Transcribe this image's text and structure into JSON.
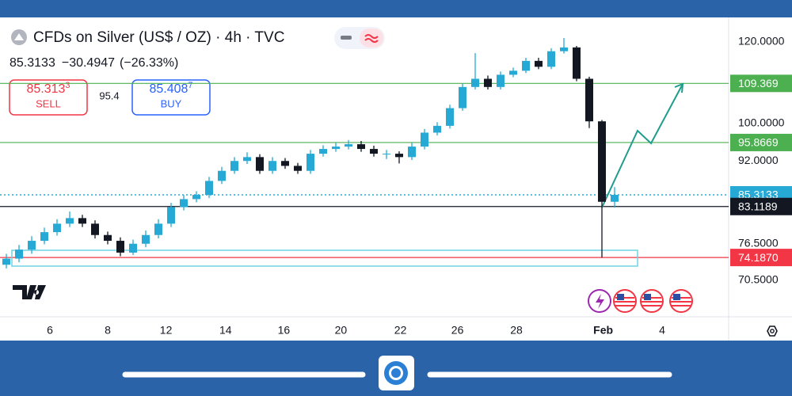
{
  "header": {
    "title": "CFDs on Silver (US$ / OZ) · 4h · TVC",
    "last": "85.3133",
    "change": "−30.4947",
    "change_pct": "(−26.33%)"
  },
  "trade": {
    "sell": {
      "price": "85.313",
      "pip": "3",
      "label": "SELL"
    },
    "spread": "95.4",
    "buy": {
      "price": "85.408",
      "pip": "7",
      "label": "BUY"
    }
  },
  "chart_data": {
    "type": "candlestick",
    "log_scale": true,
    "grid": false,
    "up_color": "#26a9d5",
    "down_color": "#131722",
    "open": [
      73.0,
      74.0,
      75.5,
      77.0,
      78.5,
      80.0,
      81.0,
      80.0,
      78.0,
      77.0,
      75.0,
      76.5,
      78.0,
      80.0,
      83.0,
      84.5,
      85.3,
      88.0,
      90.0,
      92.0,
      92.8,
      90.0,
      92.0,
      91.0,
      90.0,
      93.5,
      94.5,
      95.0,
      95.5,
      94.5,
      93.5,
      93.5,
      92.8,
      95.0,
      98.0,
      99.5,
      103.5,
      108.5,
      110.5,
      108.5,
      111.5,
      112.5,
      115.0,
      113.5,
      117.5,
      118.5,
      110.5,
      100.5,
      84.0
    ],
    "high": [
      74.8,
      76.3,
      77.8,
      79.3,
      80.8,
      82.2,
      81.6,
      80.6,
      78.6,
      77.6,
      77.2,
      78.8,
      80.8,
      83.8,
      85.3,
      86.0,
      88.8,
      90.8,
      92.8,
      93.8,
      93.4,
      92.8,
      92.6,
      91.6,
      94.3,
      95.3,
      95.8,
      96.4,
      96.2,
      95.2,
      94.3,
      94.0,
      95.8,
      98.8,
      100.3,
      104.3,
      109.3,
      117.0,
      111.3,
      112.3,
      113.3,
      115.8,
      115.8,
      118.3,
      121.0,
      118.9,
      111.0,
      100.8,
      86.8
    ],
    "low": [
      72.4,
      73.4,
      74.8,
      76.4,
      77.9,
      79.4,
      79.4,
      77.4,
      76.4,
      74.4,
      74.6,
      75.9,
      77.4,
      79.4,
      82.4,
      83.9,
      84.7,
      87.4,
      89.4,
      91.4,
      89.4,
      89.4,
      90.4,
      89.4,
      89.4,
      92.9,
      93.9,
      94.4,
      93.9,
      92.9,
      92.4,
      91.5,
      92.2,
      94.4,
      97.4,
      98.9,
      102.9,
      107.9,
      107.9,
      107.9,
      110.9,
      111.9,
      112.9,
      112.9,
      116.9,
      109.9,
      99.0,
      74.187,
      82.9
    ],
    "close": [
      74.0,
      75.5,
      77.0,
      78.5,
      80.0,
      81.0,
      80.0,
      78.0,
      77.0,
      75.0,
      76.5,
      78.0,
      80.0,
      83.0,
      84.5,
      85.3,
      88.0,
      90.0,
      92.0,
      92.8,
      90.0,
      92.0,
      91.0,
      90.0,
      93.5,
      94.5,
      95.0,
      95.5,
      94.5,
      93.5,
      93.5,
      92.8,
      95.0,
      98.0,
      99.5,
      103.5,
      108.5,
      110.5,
      108.5,
      111.5,
      112.5,
      115.0,
      113.5,
      117.5,
      118.5,
      110.5,
      100.5,
      84.0,
      85.3133
    ],
    "xlim": [
      -0.5,
      57
    ],
    "xticks": [
      {
        "value": 3.44,
        "label": "6"
      },
      {
        "value": 8,
        "label": "8"
      },
      {
        "value": 12.6,
        "label": "12"
      },
      {
        "value": 17.3,
        "label": "14"
      },
      {
        "value": 21.9,
        "label": "16"
      },
      {
        "value": 26.4,
        "label": "20"
      },
      {
        "value": 31.1,
        "label": "22"
      },
      {
        "value": 35.6,
        "label": "26"
      },
      {
        "value": 40.25,
        "label": "28"
      },
      {
        "value": 47.1,
        "label": "Feb"
      },
      {
        "value": 51.75,
        "label": "4"
      }
    ],
    "ylim": [
      65,
      126.7
    ],
    "yticks": [
      {
        "value": 120,
        "label": "120.0000"
      },
      {
        "value": 100,
        "label": "100.0000"
      },
      {
        "value": 92,
        "label": "92.0000"
      },
      {
        "value": 76.5,
        "label": "76.5000"
      },
      {
        "value": 70.5,
        "label": "70.5000"
      }
    ],
    "levels": [
      {
        "value": 109.369,
        "color": "#4caf50",
        "line": "solid"
      },
      {
        "value": 95.8669,
        "color": "#4caf50",
        "line": "solid"
      },
      {
        "value": 85.3133,
        "color": "#26a9d5",
        "line": "dotted"
      },
      {
        "value": 83.1189,
        "color": "#131722",
        "line": "solid"
      },
      {
        "value": 74.187,
        "label": "74.1870",
        "color": "#f23645",
        "line": "solid"
      }
    ]
  }
}
